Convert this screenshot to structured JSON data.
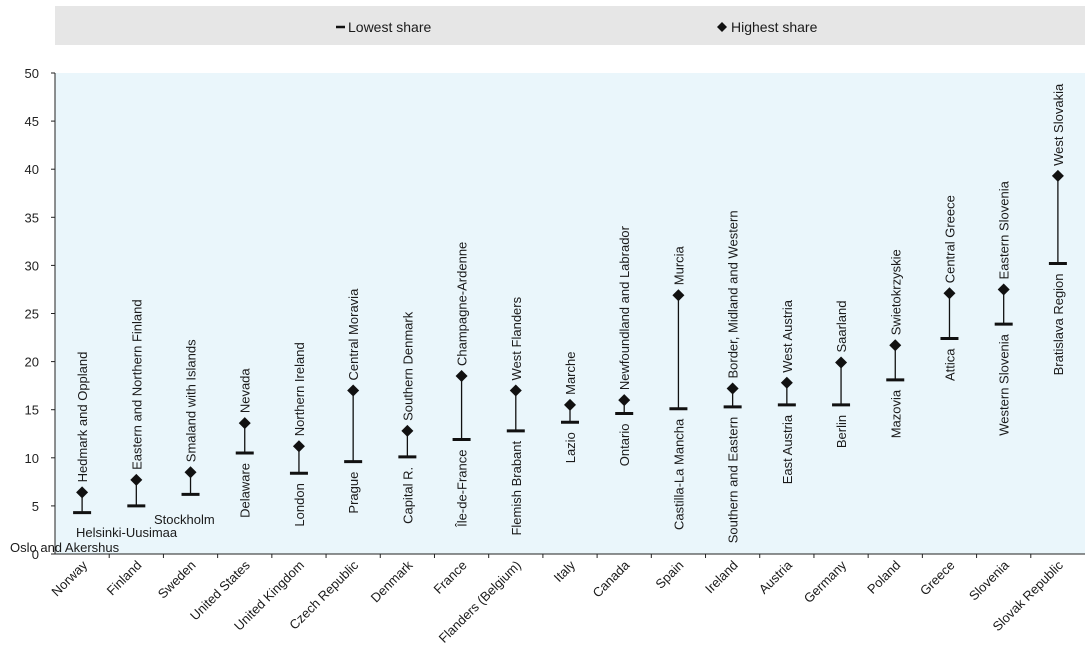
{
  "chart_data": {
    "type": "range",
    "title": "",
    "xlabel": "",
    "ylabel": "",
    "ylim": [
      0,
      50
    ],
    "yticks": [
      0,
      5,
      10,
      15,
      20,
      25,
      30,
      35,
      40,
      45,
      50
    ],
    "grid": false,
    "legend": {
      "placement": "top",
      "entries": [
        {
          "label": "Lowest share",
          "marker": "bar"
        },
        {
          "label": "Highest share",
          "marker": "diamond"
        }
      ]
    },
    "colors": {
      "plot_bg": "#eaf6fb",
      "legend_bg": "#e6e6e6",
      "marks": "#111111"
    },
    "categories": [
      {
        "country": "Norway",
        "low": 4.3,
        "high": 6.4,
        "low_region": "Oslo and Akershus",
        "high_region": "Hedmark and Oppland"
      },
      {
        "country": "Finland",
        "low": 5.0,
        "high": 7.7,
        "low_region": "Helsinki-Uusimaa",
        "high_region": "Eastern and Northern Finland"
      },
      {
        "country": "Sweden",
        "low": 6.2,
        "high": 8.5,
        "low_region": "Stockholm",
        "high_region": "Smaland with Islands"
      },
      {
        "country": "United States",
        "low": 10.5,
        "high": 13.6,
        "low_region": "Delaware",
        "high_region": "Nevada"
      },
      {
        "country": "United Kingdom",
        "low": 8.4,
        "high": 11.2,
        "low_region": "London",
        "high_region": "Northern Ireland"
      },
      {
        "country": "Czech Republic",
        "low": 9.6,
        "high": 17.0,
        "low_region": "Prague",
        "high_region": "Central Moravia"
      },
      {
        "country": "Denmark",
        "low": 10.1,
        "high": 12.8,
        "low_region": "Capital R.",
        "high_region": "Southern Denmark"
      },
      {
        "country": "France",
        "low": 11.9,
        "high": 18.5,
        "low_region": "Île-de-France",
        "high_region": "Champagne-Ardenne"
      },
      {
        "country": "Flanders (Belgium)",
        "low": 12.8,
        "high": 17.0,
        "low_region": "Flemish Brabant",
        "high_region": "West Flanders"
      },
      {
        "country": "Italy",
        "low": 13.7,
        "high": 15.5,
        "low_region": "Lazio",
        "high_region": "Marche"
      },
      {
        "country": "Canada",
        "low": 14.6,
        "high": 16.0,
        "low_region": "Ontario",
        "high_region": "Newfoundland and Labrador"
      },
      {
        "country": "Spain",
        "low": 15.1,
        "high": 26.9,
        "low_region": "Castilla-La Mancha",
        "high_region": "Murcia"
      },
      {
        "country": "Ireland",
        "low": 15.3,
        "high": 17.2,
        "low_region": "Southern and Eastern",
        "high_region": "Border, Midland and Western"
      },
      {
        "country": "Austria",
        "low": 15.5,
        "high": 17.8,
        "low_region": "East Austria",
        "high_region": "West Austria"
      },
      {
        "country": "Germany",
        "low": 15.5,
        "high": 19.9,
        "low_region": "Berlin",
        "high_region": "Saarland"
      },
      {
        "country": "Poland",
        "low": 18.1,
        "high": 21.7,
        "low_region": "Mazovia",
        "high_region": "Swietokrzyskie"
      },
      {
        "country": "Greece",
        "low": 22.4,
        "high": 27.1,
        "low_region": "Attica",
        "high_region": "Central Greece"
      },
      {
        "country": "Slovenia",
        "low": 23.9,
        "high": 27.5,
        "low_region": "Western Slovenia",
        "high_region": "Eastern Slovenia"
      },
      {
        "country": "Slovak Republic",
        "low": 30.2,
        "high": 39.3,
        "low_region": "Bratislava Region",
        "high_region": "West Slovakia"
      }
    ]
  }
}
